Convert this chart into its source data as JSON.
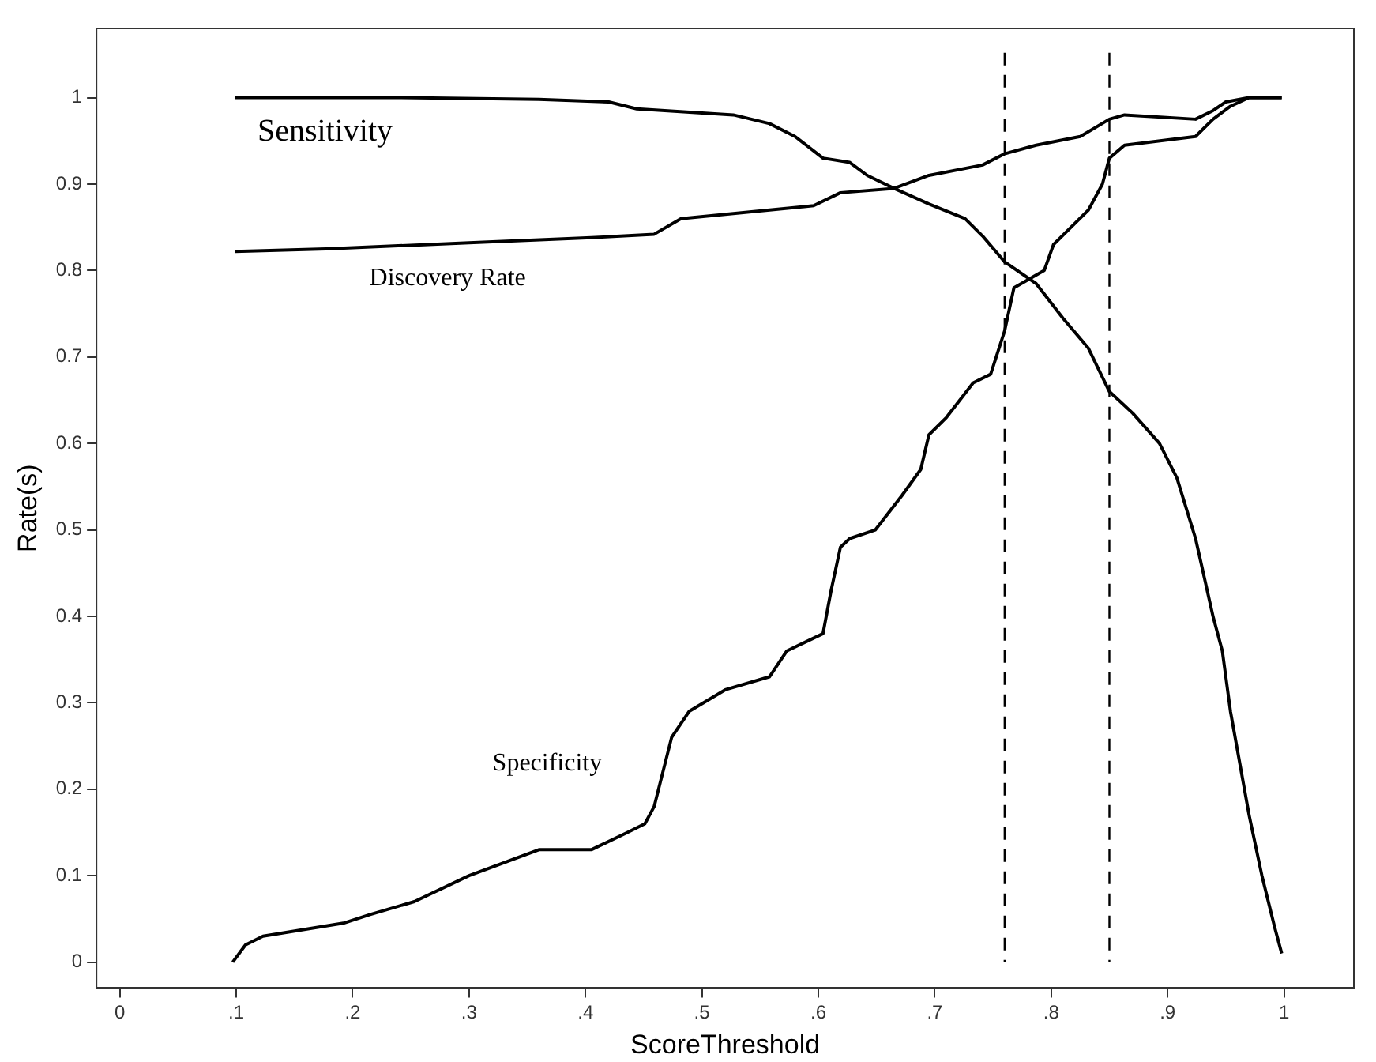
{
  "chart_data": {
    "type": "line",
    "xlabel": "ScoreThreshold",
    "ylabel": "Rate(s)",
    "xlim": [
      -0.02,
      1.06
    ],
    "ylim": [
      -0.03,
      1.08
    ],
    "xticks": [
      0,
      {
        "value": 0.1,
        "label": ".1"
      },
      {
        "value": 0.2,
        "label": ".2"
      },
      {
        "value": 0.3,
        "label": ".3"
      },
      {
        "value": 0.4,
        "label": ".4"
      },
      {
        "value": 0.5,
        "label": ".5"
      },
      {
        "value": 0.6,
        "label": ".6"
      },
      {
        "value": 0.7,
        "label": ".7"
      },
      {
        "value": 0.8,
        "label": ".8"
      },
      {
        "value": 0.9,
        "label": ".9"
      },
      1
    ],
    "yticks": [
      0,
      0.1,
      0.2,
      0.3,
      0.4,
      0.5,
      0.6,
      0.7,
      0.8,
      0.9,
      1
    ],
    "grid": false,
    "legend": false,
    "marker": "none",
    "line_style": "solid",
    "series": [
      {
        "name": "Sensitivity",
        "color": "#000000",
        "x": [
          0.099,
          0.238,
          0.36,
          0.42,
          0.444,
          0.527,
          0.558,
          0.58,
          0.604,
          0.627,
          0.642,
          0.665,
          0.695,
          0.726,
          0.741,
          0.76,
          0.787,
          0.81,
          0.832,
          0.85,
          0.87,
          0.893,
          0.908,
          0.924,
          0.939,
          0.947,
          0.954,
          0.97,
          0.981,
          0.992,
          0.998
        ],
        "values": [
          1,
          1,
          0.998,
          0.995,
          0.987,
          0.98,
          0.97,
          0.955,
          0.93,
          0.925,
          0.91,
          0.895,
          0.877,
          0.86,
          0.84,
          0.81,
          0.785,
          0.745,
          0.71,
          0.66,
          0.635,
          0.6,
          0.56,
          0.49,
          0.4,
          0.36,
          0.29,
          0.17,
          0.1,
          0.04,
          0.01
        ]
      },
      {
        "name": "Discovery Rate",
        "color": "#000000",
        "x": [
          0.099,
          0.177,
          0.3,
          0.405,
          0.459,
          0.482,
          0.52,
          0.596,
          0.619,
          0.665,
          0.695,
          0.741,
          0.76,
          0.787,
          0.825,
          0.85,
          0.863,
          0.924,
          0.939,
          0.95,
          0.97,
          0.998
        ],
        "values": [
          0.822,
          0.825,
          0.832,
          0.838,
          0.842,
          0.86,
          0.865,
          0.875,
          0.89,
          0.895,
          0.91,
          0.922,
          0.935,
          0.945,
          0.955,
          0.975,
          0.98,
          0.975,
          0.985,
          0.995,
          1,
          1
        ]
      },
      {
        "name": "Specificity",
        "color": "#000000",
        "x": [
          0.097,
          0.108,
          0.123,
          0.192,
          0.215,
          0.253,
          0.3,
          0.36,
          0.405,
          0.436,
          0.451,
          0.459,
          0.474,
          0.489,
          0.52,
          0.558,
          0.573,
          0.604,
          0.611,
          0.619,
          0.627,
          0.649,
          0.672,
          0.688,
          0.695,
          0.71,
          0.733,
          0.748,
          0.76,
          0.768,
          0.794,
          0.802,
          0.817,
          0.832,
          0.844,
          0.85,
          0.863,
          0.924,
          0.939,
          0.954,
          0.97,
          0.998
        ],
        "values": [
          0,
          0.02,
          0.03,
          0.045,
          0.055,
          0.07,
          0.1,
          0.13,
          0.13,
          0.15,
          0.16,
          0.18,
          0.26,
          0.29,
          0.315,
          0.33,
          0.36,
          0.38,
          0.43,
          0.48,
          0.49,
          0.5,
          0.54,
          0.57,
          0.61,
          0.63,
          0.67,
          0.68,
          0.73,
          0.78,
          0.8,
          0.83,
          0.85,
          0.87,
          0.9,
          0.93,
          0.945,
          0.955,
          0.975,
          0.99,
          1,
          1
        ]
      }
    ],
    "ref_lines": [
      {
        "axis": "x",
        "value": 0.76,
        "color": "#000000",
        "line_style": "dashed"
      },
      {
        "axis": "x",
        "value": 0.85,
        "color": "#000000",
        "line_style": "dashed"
      }
    ]
  }
}
